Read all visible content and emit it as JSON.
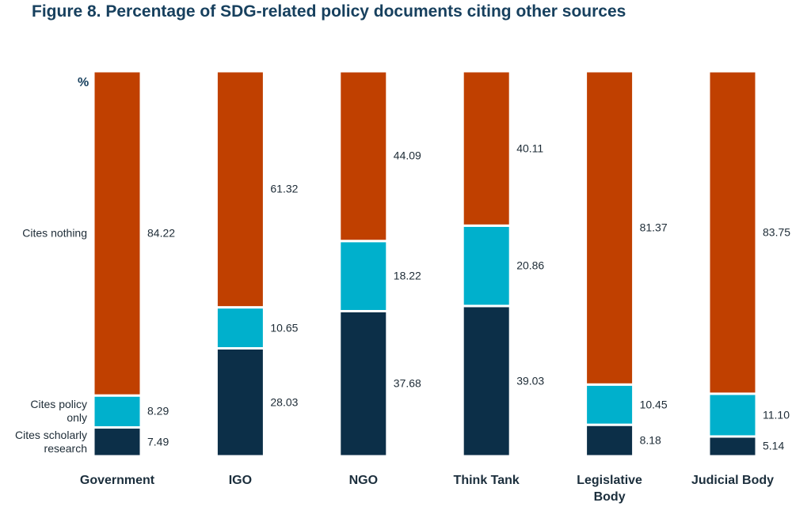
{
  "chart_data": {
    "type": "stacked-bar",
    "title": "Figure 8. Percentage of SDG-related policy documents citing other sources",
    "ylabel": "%",
    "categories": [
      "Government",
      "IGO",
      "NGO",
      "Think Tank",
      "Legislative Body",
      "Judicial Body"
    ],
    "ylim": [
      0,
      100
    ],
    "series": [
      {
        "name": "Cites scholarly research",
        "color": "#0c2f48",
        "values": [
          7.49,
          28.03,
          37.68,
          39.03,
          8.18,
          5.14
        ],
        "value_labels": [
          "7.49",
          "28.03",
          "37.68",
          "39.03",
          "8.18",
          "5.14"
        ]
      },
      {
        "name": "Cites policy only",
        "color": "#00b0cc",
        "values": [
          8.29,
          10.65,
          18.22,
          20.86,
          10.45,
          11.1
        ],
        "value_labels": [
          "8.29",
          "10.65",
          "18.22",
          "20.86",
          "10.45",
          "11.10"
        ]
      },
      {
        "name": "Cites nothing",
        "color": "#c04000",
        "values": [
          84.22,
          61.32,
          44.09,
          40.11,
          81.37,
          83.75
        ],
        "value_labels": [
          "84.22",
          "61.32",
          "44.09",
          "40.11",
          "81.37",
          "83.75"
        ]
      }
    ]
  }
}
